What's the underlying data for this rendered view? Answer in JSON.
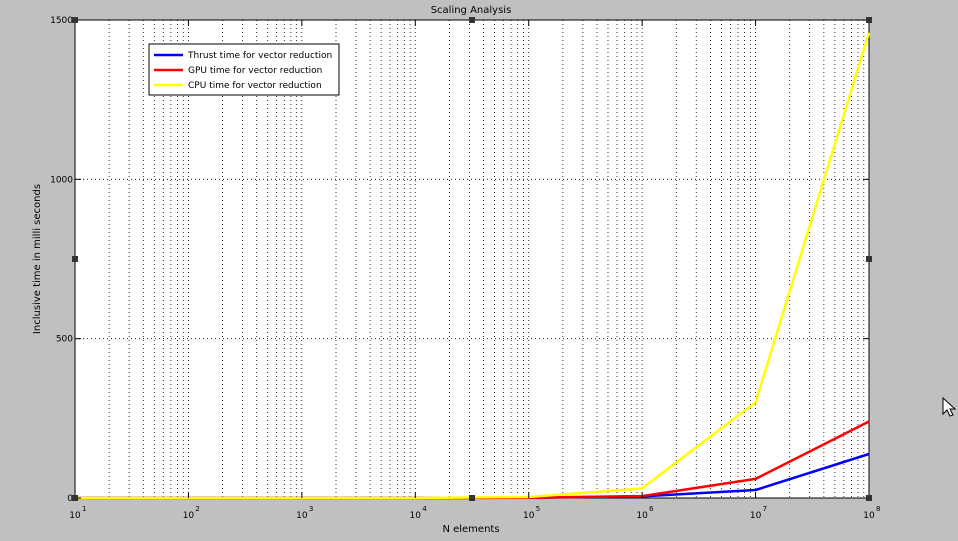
{
  "chart_data": {
    "type": "line",
    "title": "Scaling Analysis",
    "xlabel": "N elements",
    "ylabel": "Inclusive time in milli seconds",
    "xscale": "log",
    "xlim": [
      10,
      100000000
    ],
    "ylim": [
      0,
      1500
    ],
    "grid": true,
    "legend_position": "top-left",
    "x_ticks": [
      {
        "value": 10,
        "base": "10",
        "exp": "1"
      },
      {
        "value": 100,
        "base": "10",
        "exp": "2"
      },
      {
        "value": 1000,
        "base": "10",
        "exp": "3"
      },
      {
        "value": 10000,
        "base": "10",
        "exp": "4"
      },
      {
        "value": 100000,
        "base": "10",
        "exp": "5"
      },
      {
        "value": 1000000,
        "base": "10",
        "exp": "6"
      },
      {
        "value": 10000000,
        "base": "10",
        "exp": "7"
      },
      {
        "value": 100000000,
        "base": "10",
        "exp": "8"
      }
    ],
    "y_ticks": [
      {
        "value": 0,
        "label": "0"
      },
      {
        "value": 500,
        "label": "500"
      },
      {
        "value": 1000,
        "label": "1000"
      },
      {
        "value": 1500,
        "label": "1500"
      }
    ],
    "x": [
      10,
      100,
      1000,
      10000,
      100000,
      1000000,
      10000000,
      100000000
    ],
    "series": [
      {
        "name": "Thrust time for vector reduction",
        "color": "#0000ff",
        "values": [
          0,
          0,
          0,
          0,
          1,
          5,
          25,
          138
        ]
      },
      {
        "name": "GPU time for vector reduction",
        "color": "#ff0000",
        "values": [
          0,
          0,
          0,
          0,
          1,
          6,
          60,
          240
        ]
      },
      {
        "name": "CPU time for vector reduction",
        "color": "#ffff00",
        "values": [
          0,
          0,
          0,
          0,
          3,
          30,
          300,
          1460
        ]
      }
    ]
  }
}
